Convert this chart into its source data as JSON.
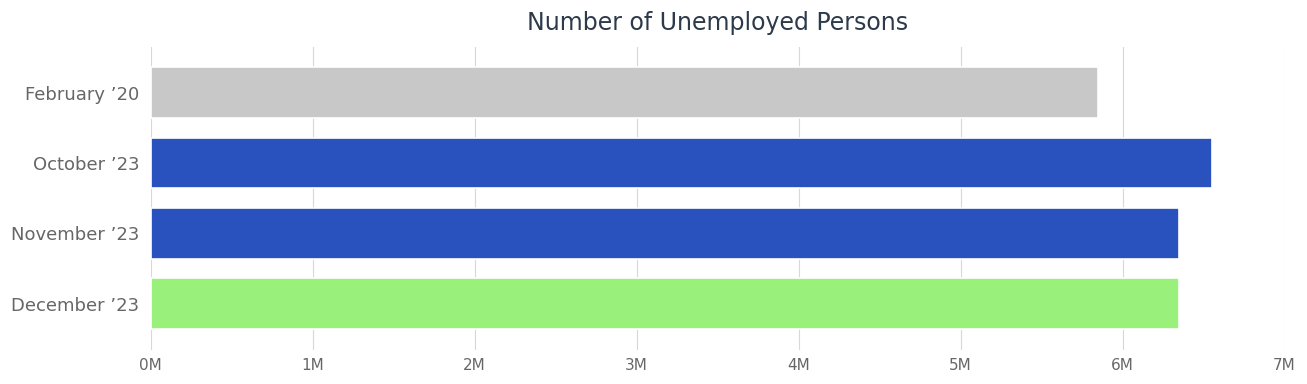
{
  "title": "Number of Unemployed Persons",
  "categories": [
    "February ’20",
    "October ’23",
    "November ’23",
    "December ’23"
  ],
  "values": [
    5850000,
    6550000,
    6350000,
    6350000
  ],
  "bar_colors": [
    "#c8c8c8",
    "#2a52be",
    "#2a52be",
    "#99f07a"
  ],
  "xlim": [
    0,
    7000000
  ],
  "xtick_values": [
    0,
    1000000,
    2000000,
    3000000,
    4000000,
    5000000,
    6000000,
    7000000
  ],
  "xtick_labels": [
    "0M",
    "1M",
    "2M",
    "3M",
    "4M",
    "5M",
    "6M",
    "7M"
  ],
  "background_color": "#ffffff",
  "grid_color": "#d8d8d8",
  "title_fontsize": 17,
  "label_fontsize": 13,
  "tick_fontsize": 11,
  "bar_height": 0.72,
  "label_color": "#666666",
  "title_color": "#2d3a4a"
}
